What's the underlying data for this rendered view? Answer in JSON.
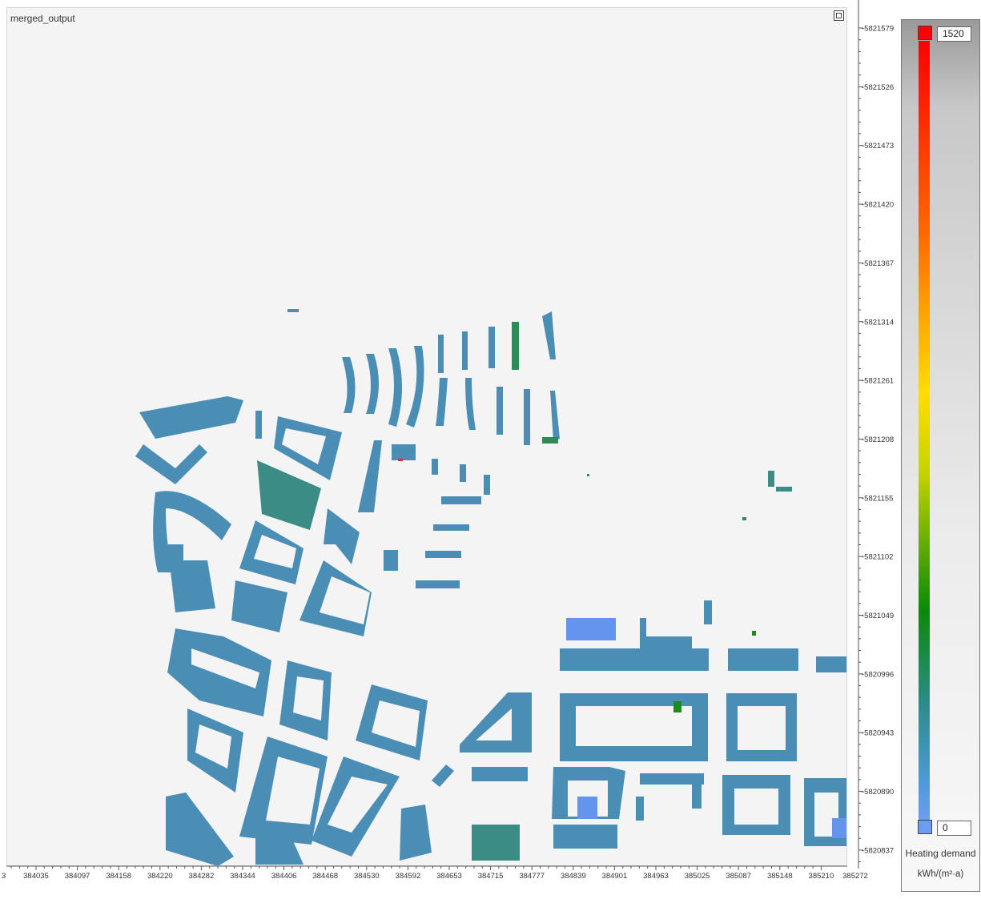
{
  "map": {
    "layer_title": "merged_output",
    "maximize_icon": "maximize-icon"
  },
  "axes": {
    "y_ticks": [
      "5821579",
      "5821526",
      "5821473",
      "5821420",
      "5821367",
      "5821314",
      "5821261",
      "5821208",
      "5821155",
      "5821102",
      "5821049",
      "5820996",
      "5820943",
      "5820890",
      "5820837"
    ],
    "x_ticks": [
      "384035",
      "384097",
      "384158",
      "384220",
      "384282",
      "384344",
      "384406",
      "384468",
      "384530",
      "384592",
      "384653",
      "384715",
      "384777",
      "384839",
      "384901",
      "384963",
      "385025",
      "385087",
      "385148",
      "385210"
    ],
    "x_tick_edge_left": "3",
    "x_tick_edge_right": "385272"
  },
  "legend": {
    "max_value": "1520",
    "min_value": "0",
    "title": "Heating demand",
    "unit": "kWh/(m²·a)",
    "colors": {
      "max": "#ff0000",
      "min": "#6c9df0"
    }
  },
  "colors": {
    "building_main": "#4a8db5",
    "building_teal": "#3a8c85",
    "building_green": "#2e8b57",
    "building_blue": "#6495ed",
    "building_red": "#e03020",
    "background": "#f4f4f4"
  }
}
